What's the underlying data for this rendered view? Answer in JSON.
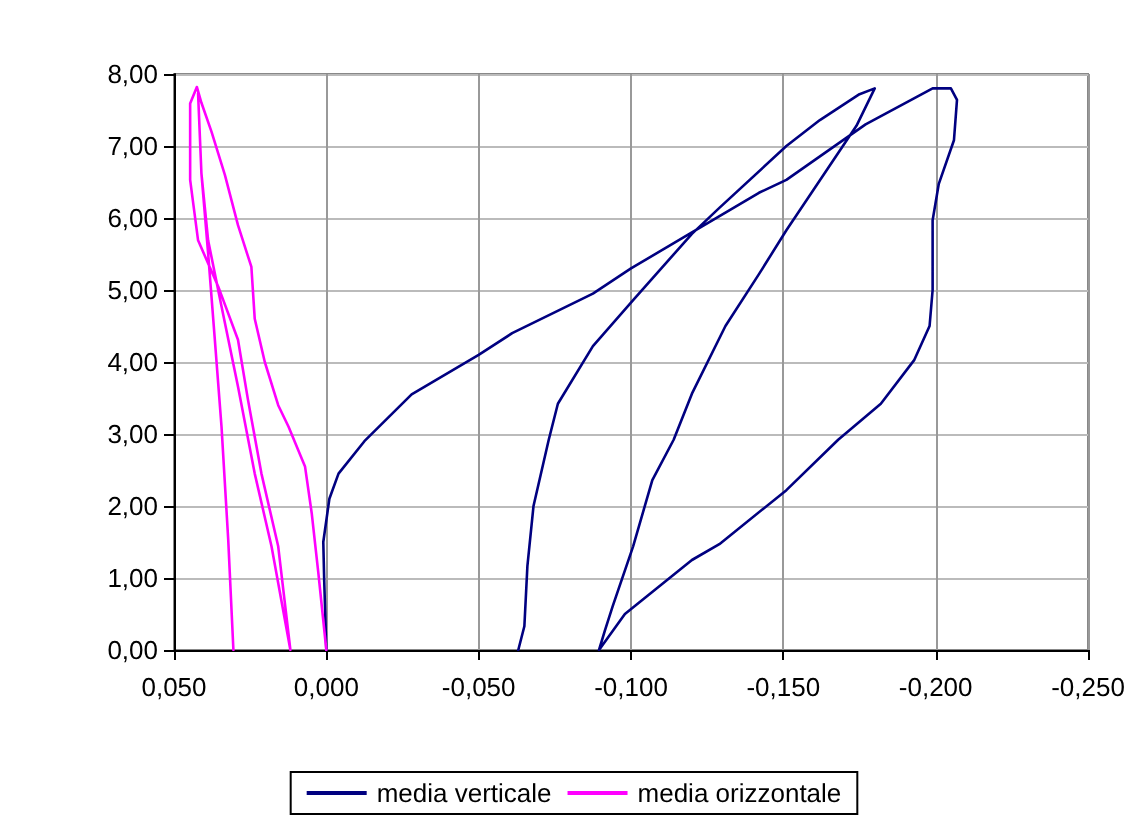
{
  "chart_data": {
    "type": "line",
    "xlim": [
      0.05,
      -0.25
    ],
    "ylim": [
      0,
      8
    ],
    "xticks": [
      {
        "value": 0.05,
        "label": "0,050"
      },
      {
        "value": 0,
        "label": "0,000"
      },
      {
        "value": -0.05,
        "label": "-0,050"
      },
      {
        "value": -0.1,
        "label": "-0,100"
      },
      {
        "value": -0.15,
        "label": "-0,150"
      },
      {
        "value": -0.2,
        "label": "-0,200"
      },
      {
        "value": -0.25,
        "label": "-0,250"
      }
    ],
    "yticks": [
      {
        "value": 0,
        "label": "0,00"
      },
      {
        "value": 1,
        "label": "1,00"
      },
      {
        "value": 2,
        "label": "2,00"
      },
      {
        "value": 3,
        "label": "3,00"
      },
      {
        "value": 4,
        "label": "4,00"
      },
      {
        "value": 5,
        "label": "5,00"
      },
      {
        "value": 6,
        "label": "6,00"
      },
      {
        "value": 7,
        "label": "7,00"
      },
      {
        "value": 8,
        "label": "8,00"
      }
    ],
    "grid": true,
    "legend": "bottom",
    "marker": "none",
    "series": [
      {
        "name": "media verticale",
        "color": "#000080",
        "x": [
          0,
          0.0007,
          0.001,
          -0.001,
          -0.004,
          -0.0125,
          -0.028,
          -0.05,
          -0.061,
          -0.0875,
          -0.1,
          -0.12,
          -0.142,
          -0.151,
          -0.177,
          -0.199,
          -0.205,
          -0.207,
          -0.206,
          -0.201,
          -0.199,
          -0.199,
          -0.198,
          -0.193,
          -0.182,
          -0.168,
          -0.151,
          -0.129,
          -0.12,
          -0.098,
          -0.0895,
          -0.0915,
          -0.094,
          -0.1007,
          -0.107,
          -0.114,
          -0.12,
          -0.131,
          -0.142,
          -0.151,
          -0.174,
          -0.18,
          -0.175,
          -0.162,
          -0.151,
          -0.129,
          -0.12,
          -0.1007,
          -0.0875,
          -0.076,
          -0.073,
          -0.068,
          -0.066,
          -0.065,
          -0.063
        ],
        "values": [
          0,
          0.97,
          1.5,
          2.1,
          2.45,
          2.9,
          3.55,
          4.1,
          4.4,
          4.95,
          5.3,
          5.8,
          6.35,
          6.53,
          7.3,
          7.8,
          7.8,
          7.64,
          7.08,
          6.47,
          5.97,
          5.0,
          4.5,
          4.03,
          3.42,
          2.92,
          2.22,
          1.47,
          1.25,
          0.5,
          0,
          0.28,
          0.61,
          1.44,
          2.36,
          2.92,
          3.56,
          4.5,
          5.22,
          5.83,
          7.28,
          7.8,
          7.72,
          7.36,
          7.0,
          6.14,
          5.78,
          4.86,
          4.22,
          3.42,
          2.92,
          2.0,
          1.17,
          0.33,
          0
        ]
      },
      {
        "name": "media orizzontale",
        "color": "#ff00ff",
        "x": [
          0,
          0.0026,
          0.0048,
          0.007,
          0.0124,
          0.0158,
          0.0202,
          0.0235,
          0.0246,
          0.029,
          0.0333,
          0.0377,
          0.041,
          0.0425,
          0.0447,
          0.0447,
          0.0421,
          0.0355,
          0.029,
          0.0257,
          0.0213,
          0.0158,
          0.0118,
          0.018,
          0.0235,
          0.029,
          0.0344,
          0.0388,
          0.041,
          0.0421,
          0.041,
          0.0388,
          0.0366,
          0.0344,
          0.0322,
          0.0305
        ],
        "values": [
          0,
          1.06,
          1.9,
          2.55,
          3.1,
          3.4,
          4.0,
          4.6,
          5.32,
          5.9,
          6.6,
          7.2,
          7.6,
          7.82,
          7.59,
          6.53,
          5.69,
          5.05,
          4.31,
          3.47,
          2.45,
          1.44,
          0,
          1.44,
          2.45,
          3.66,
          4.77,
          5.69,
          6.62,
          7.73,
          6.62,
          5.51,
          4.31,
          3.1,
          1.53,
          0
        ]
      }
    ]
  }
}
